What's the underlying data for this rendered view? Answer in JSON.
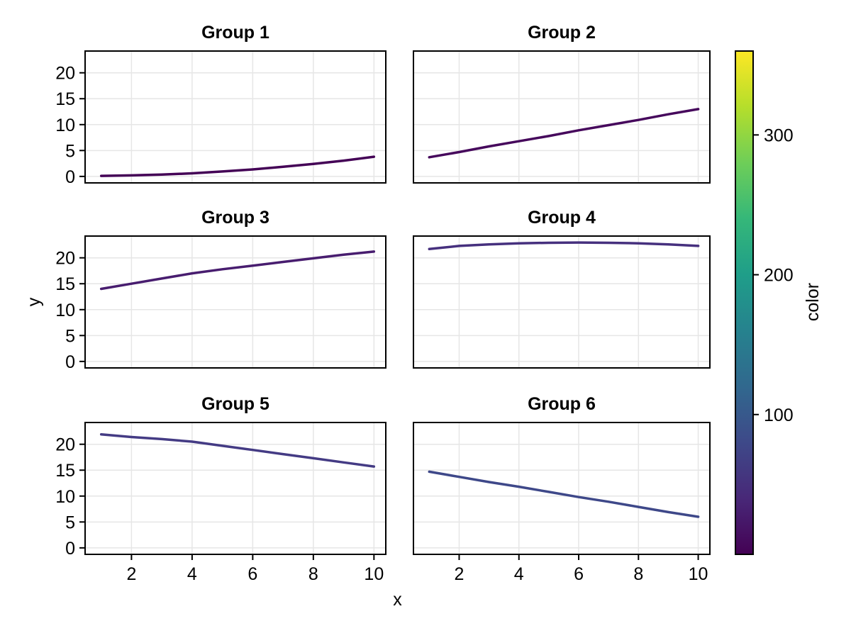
{
  "figure": {
    "background": "#ffffff"
  },
  "chart_data": {
    "type": "line",
    "layout_hint": "3x2 facet grid with shared x/y axes, gridlines on, vertical colorbar on right",
    "xlabel": "x",
    "ylabel": "y",
    "x_ticks": [
      2,
      4,
      6,
      8,
      10
    ],
    "y_ticks": [
      0,
      5,
      10,
      15,
      20
    ],
    "xlim": [
      0.47,
      10.39
    ],
    "ylim": [
      -1.25,
      24.2
    ],
    "grid": true,
    "x": [
      1,
      2,
      3,
      4,
      5,
      6,
      7,
      8,
      9,
      10
    ],
    "facets": [
      {
        "title": "Group 1",
        "line_color": "#440256",
        "values": [
          0.1,
          0.2,
          0.35,
          0.6,
          0.95,
          1.35,
          1.85,
          2.4,
          3.05,
          3.8
        ]
      },
      {
        "title": "Group 2",
        "line_color": "#46085C",
        "values": [
          3.7,
          4.7,
          5.8,
          6.8,
          7.8,
          8.9,
          9.9,
          10.9,
          12.0,
          13.0
        ]
      },
      {
        "title": "Group 3",
        "line_color": "#481D6F",
        "values": [
          14.0,
          15.0,
          16.0,
          17.0,
          17.8,
          18.5,
          19.2,
          19.9,
          20.6,
          21.2
        ]
      },
      {
        "title": "Group 4",
        "line_color": "#46307E",
        "values": [
          21.7,
          22.3,
          22.6,
          22.8,
          22.9,
          22.95,
          22.9,
          22.8,
          22.6,
          22.3
        ]
      },
      {
        "title": "Group 5",
        "line_color": "#443B84",
        "values": [
          21.9,
          21.4,
          21.0,
          20.5,
          19.7,
          18.9,
          18.1,
          17.3,
          16.5,
          15.7
        ]
      },
      {
        "title": "Group 6",
        "line_color": "#3E4889",
        "values": [
          14.7,
          13.7,
          12.7,
          11.8,
          10.8,
          9.8,
          8.9,
          7.9,
          6.9,
          6.0
        ]
      }
    ],
    "colorbar": {
      "label": "color",
      "ticks": [
        100,
        200,
        300
      ],
      "limits": [
        0,
        360
      ],
      "colormap": "viridis",
      "gradient_stops": [
        "#440154",
        "#482878",
        "#3e4989",
        "#31688e",
        "#26828e",
        "#1f9e89",
        "#35b779",
        "#6ece58",
        "#b5de2b",
        "#fde725"
      ]
    }
  },
  "styles": {
    "grid_color": "#e6e6e6",
    "frame_color": "#000000",
    "tick_color": "#000000",
    "text_color": "#000000"
  }
}
